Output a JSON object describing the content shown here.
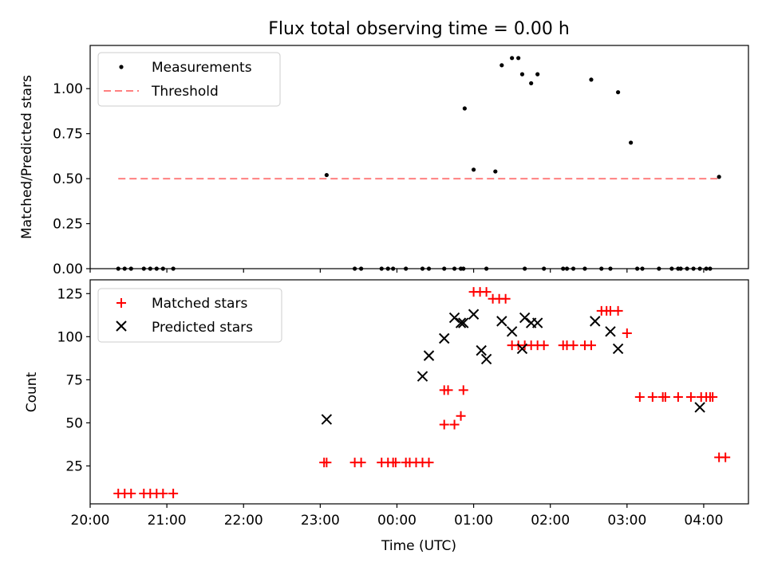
{
  "chart_data": [
    {
      "type": "scatter",
      "title": "Flux total observing time = 0.00 h",
      "xlabel": "",
      "ylabel": "Matched/Predicted stars",
      "xlim": [
        -240,
        275
      ],
      "ylim": [
        0,
        1.24
      ],
      "yticks": [
        0,
        0.25,
        0.5,
        0.75,
        1.0
      ],
      "ytick_labels": [
        "0.00",
        "0.25",
        "0.50",
        "0.75",
        "1.00"
      ],
      "legend": {
        "placement": "top-left",
        "entries": [
          "Measurements",
          "Threshold"
        ]
      },
      "threshold": {
        "name": "Threshold",
        "value": 0.5,
        "x_range": [
          -218,
          252
        ],
        "color": "#ff8080"
      },
      "series": [
        {
          "name": "Measurements",
          "color": "#000000",
          "x": [
            -218,
            -213,
            -208,
            -198,
            -193,
            -188,
            -183,
            -175,
            -55,
            -33,
            -28,
            -12,
            -7,
            -3,
            7,
            20,
            25,
            37,
            45,
            50,
            52,
            53,
            60,
            70,
            77,
            82,
            90,
            95,
            98,
            100,
            105,
            110,
            115,
            130,
            133,
            138,
            147,
            152,
            160,
            167,
            173,
            183,
            188,
            192,
            205,
            215,
            220,
            222,
            227,
            232,
            237,
            242,
            245,
            252
          ],
          "y": [
            0,
            0,
            0,
            0,
            0,
            0,
            0,
            0,
            0.52,
            0,
            0,
            0,
            0,
            0,
            0,
            0,
            0,
            0,
            0,
            0,
            0,
            0.89,
            0.55,
            0,
            0.54,
            1.13,
            1.17,
            1.17,
            1.08,
            0,
            1.03,
            1.08,
            0,
            0,
            0,
            0,
            0,
            1.05,
            0,
            0,
            0.98,
            0.7,
            0,
            0,
            0,
            0,
            0,
            0,
            0,
            0,
            0,
            0,
            0,
            0.51
          ]
        }
      ]
    },
    {
      "type": "scatter",
      "title": "",
      "xlabel": "Time (UTC)",
      "ylabel": "Count",
      "xlim": [
        -240,
        275
      ],
      "ylim": [
        3,
        133
      ],
      "yticks": [
        25,
        50,
        75,
        100,
        125
      ],
      "ytick_labels": [
        "25",
        "50",
        "75",
        "100",
        "125"
      ],
      "xticks": [
        -240,
        -180,
        -120,
        -60,
        0,
        60,
        120,
        180,
        240
      ],
      "xtick_labels": [
        "20:00",
        "21:00",
        "22:00",
        "23:00",
        "00:00",
        "01:00",
        "02:00",
        "03:00",
        "04:00"
      ],
      "legend": {
        "placement": "top-left",
        "entries": [
          "Matched stars",
          "Predicted stars"
        ]
      },
      "series": [
        {
          "name": "Matched stars",
          "color": "#ff0000",
          "marker": "+",
          "x": [
            -218,
            -213,
            -208,
            -198,
            -193,
            -188,
            -183,
            -175,
            -55,
            -57,
            -33,
            -28,
            -12,
            -7,
            -3,
            -1,
            7,
            10,
            15,
            20,
            25,
            37,
            45,
            50,
            37,
            40,
            52,
            60,
            65,
            70,
            75,
            80,
            85,
            90,
            95,
            100,
            105,
            110,
            115,
            130,
            133,
            138,
            147,
            152,
            160,
            164,
            167,
            173,
            180,
            190,
            200,
            208,
            210,
            220,
            230,
            238,
            242,
            245,
            247,
            252,
            257
          ],
          "y": [
            9,
            9,
            9,
            9,
            9,
            9,
            9,
            9,
            27,
            27,
            27,
            27,
            27,
            27,
            27,
            27,
            27,
            27,
            27,
            27,
            27,
            49,
            49,
            54,
            69,
            69,
            69,
            126,
            126,
            126,
            122,
            122,
            122,
            95,
            95,
            95,
            95,
            95,
            95,
            95,
            95,
            95,
            95,
            95,
            115,
            115,
            115,
            115,
            102,
            65,
            65,
            65,
            65,
            65,
            65,
            65,
            65,
            65,
            65,
            30,
            30
          ]
        },
        {
          "name": "Predicted stars",
          "color": "#000000",
          "marker": "x",
          "x": [
            -55,
            20,
            25,
            37,
            45,
            50,
            52,
            60,
            66,
            70,
            82,
            90,
            98,
            100,
            105,
            110,
            155,
            167,
            173,
            237
          ],
          "y": [
            52,
            77,
            89,
            99,
            111,
            108,
            108,
            113,
            92,
            87,
            109,
            103,
            93,
            111,
            108,
            108,
            109,
            103,
            93,
            59
          ]
        }
      ]
    }
  ]
}
